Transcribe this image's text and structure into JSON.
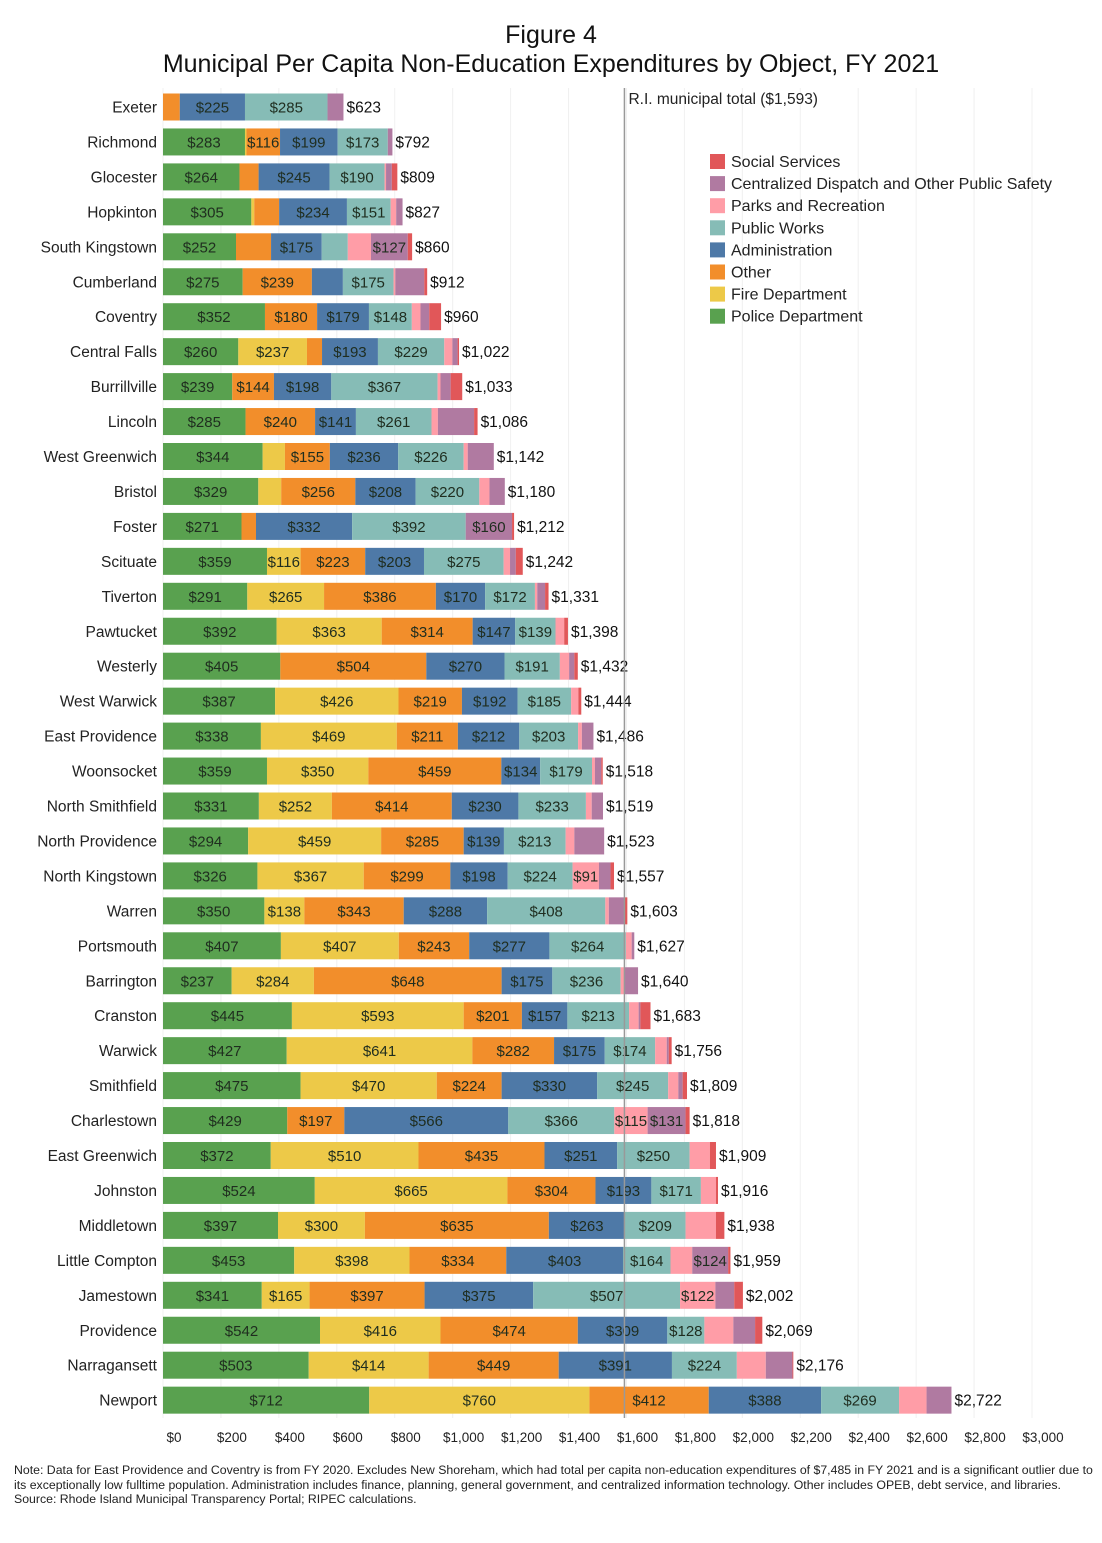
{
  "figure_label": "Figure 4",
  "footnote": {
    "note": "Note: Data for East Providence and Coventry is from FY 2020. Excludes New Shoreham, which had total per capita non-education expenditures of $7,485 in FY 2021 and is a significant outlier due to its exceptionally low fulltime population. Administration includes finance, planning, general government, and centralized information technology. Other includes OPEB, debt service, and libraries.",
    "source": "Source: Rhode Island Municipal Transparency Portal; RIPEC calculations."
  },
  "chart_data": {
    "type": "bar",
    "orientation": "horizontal",
    "stacked": true,
    "title": "Municipal Per Capita Non-Education Expenditures by Object, FY 2021",
    "xlabel": "",
    "ylabel": "",
    "xlim": [
      0,
      3000
    ],
    "x_ticks": [
      "$0",
      "$200",
      "$400",
      "$600",
      "$800",
      "$1,000",
      "$1,200",
      "$1,400",
      "$1,600",
      "$1,800",
      "$2,000",
      "$2,200",
      "$2,400",
      "$2,600",
      "$2,800",
      "$3,000"
    ],
    "x_tick_values": [
      0,
      200,
      400,
      600,
      800,
      1000,
      1200,
      1400,
      1600,
      1800,
      2000,
      2200,
      2400,
      2600,
      2800,
      3000
    ],
    "grid": "vertical",
    "legend_position": "top-right",
    "reference_line": {
      "value": 1593,
      "label": "R.I. municipal total ($1,593)",
      "color": "#999999"
    },
    "legend_order": [
      "Social Services",
      "Centralized Dispatch and Other Public Safety",
      "Parks and Recreation",
      "Public Works",
      "Administration",
      "Other",
      "Fire Department",
      "Police Department"
    ],
    "categories": [
      "Exeter",
      "Richmond",
      "Glocester",
      "Hopkinton",
      "South Kingstown",
      "Cumberland",
      "Coventry",
      "Central Falls",
      "Burrillville",
      "Lincoln",
      "West Greenwich",
      "Bristol",
      "Foster",
      "Scituate",
      "Tiverton",
      "Pawtucket",
      "Westerly",
      "West Warwick",
      "East Providence",
      "Woonsocket",
      "North Smithfield",
      "North Providence",
      "North Kingstown",
      "Warren",
      "Portsmouth",
      "Barrington",
      "Cranston",
      "Warwick",
      "Smithfield",
      "Charlestown",
      "East Greenwich",
      "Johnston",
      "Middletown",
      "Little Compton",
      "Jamestown",
      "Providence",
      "Narragansett",
      "Newport"
    ],
    "totals": [
      623,
      792,
      809,
      827,
      860,
      912,
      960,
      1022,
      1033,
      1086,
      1142,
      1180,
      1212,
      1242,
      1331,
      1398,
      1432,
      1444,
      1486,
      1518,
      1519,
      1523,
      1557,
      1603,
      1627,
      1640,
      1683,
      1756,
      1809,
      1818,
      1909,
      1916,
      1938,
      1959,
      2002,
      2069,
      2176,
      2722
    ],
    "total_labels": [
      "$623",
      "$792",
      "$809",
      "$827",
      "$860",
      "$912",
      "$960",
      "$1,022",
      "$1,033",
      "$1,086",
      "$1,142",
      "$1,180",
      "$1,212",
      "$1,242",
      "$1,331",
      "$1,398",
      "$1,432",
      "$1,444",
      "$1,486",
      "$1,518",
      "$1,519",
      "$1,523",
      "$1,557",
      "$1,603",
      "$1,627",
      "$1,640",
      "$1,683",
      "$1,756",
      "$1,809",
      "$1,818",
      "$1,909",
      "$1,916",
      "$1,938",
      "$1,959",
      "$2,002",
      "$2,069",
      "$2,176",
      "$2,722"
    ],
    "series": [
      {
        "name": "Police Department",
        "color": "#59a14f",
        "values": [
          0,
          283,
          264,
          305,
          252,
          275,
          352,
          260,
          239,
          285,
          344,
          329,
          271,
          359,
          291,
          392,
          405,
          387,
          338,
          359,
          331,
          294,
          326,
          350,
          407,
          237,
          445,
          427,
          475,
          429,
          372,
          524,
          397,
          453,
          341,
          542,
          503,
          712
        ],
        "labeled": [
          false,
          true,
          true,
          true,
          true,
          true,
          true,
          true,
          true,
          true,
          true,
          true,
          true,
          true,
          true,
          true,
          true,
          true,
          true,
          true,
          true,
          true,
          true,
          true,
          true,
          true,
          true,
          true,
          true,
          true,
          true,
          true,
          true,
          true,
          true,
          true,
          true,
          true
        ]
      },
      {
        "name": "Fire Department",
        "color": "#edc948",
        "values": [
          0,
          5,
          0,
          10,
          0,
          0,
          0,
          237,
          0,
          0,
          77,
          79,
          0,
          116,
          265,
          363,
          0,
          426,
          469,
          350,
          252,
          459,
          367,
          138,
          407,
          284,
          593,
          641,
          470,
          0,
          510,
          665,
          300,
          398,
          165,
          416,
          414,
          760
        ],
        "labeled": [
          false,
          false,
          false,
          false,
          false,
          false,
          false,
          true,
          false,
          false,
          false,
          false,
          false,
          true,
          true,
          true,
          false,
          true,
          true,
          true,
          true,
          true,
          true,
          true,
          true,
          true,
          true,
          true,
          true,
          false,
          true,
          true,
          true,
          true,
          true,
          true,
          true,
          true
        ]
      },
      {
        "name": "Other",
        "color": "#f28e2b",
        "values": [
          58,
          116,
          66,
          86,
          121,
          239,
          180,
          52,
          144,
          240,
          155,
          256,
          50,
          223,
          386,
          314,
          504,
          219,
          211,
          459,
          414,
          285,
          299,
          343,
          243,
          648,
          201,
          282,
          224,
          197,
          435,
          304,
          635,
          334,
          397,
          474,
          449,
          412
        ],
        "labeled": [
          false,
          true,
          false,
          false,
          false,
          true,
          true,
          false,
          true,
          true,
          true,
          true,
          false,
          true,
          true,
          true,
          true,
          true,
          true,
          true,
          true,
          true,
          true,
          true,
          true,
          true,
          true,
          true,
          true,
          true,
          true,
          true,
          true,
          true,
          true,
          true,
          true,
          true
        ]
      },
      {
        "name": "Administration",
        "color": "#4e79a7",
        "values": [
          225,
          199,
          245,
          234,
          175,
          107,
          179,
          193,
          198,
          141,
          236,
          208,
          332,
          203,
          170,
          147,
          270,
          192,
          212,
          134,
          230,
          139,
          198,
          288,
          277,
          175,
          157,
          175,
          330,
          566,
          251,
          193,
          263,
          403,
          375,
          309,
          391,
          388
        ],
        "labeled": [
          true,
          true,
          true,
          true,
          true,
          false,
          true,
          true,
          true,
          true,
          true,
          true,
          true,
          true,
          true,
          true,
          true,
          true,
          true,
          true,
          true,
          true,
          true,
          true,
          true,
          true,
          true,
          true,
          true,
          true,
          true,
          true,
          true,
          true,
          true,
          true,
          true,
          true
        ]
      },
      {
        "name": "Public Works",
        "color": "#86bcb6",
        "values": [
          285,
          173,
          190,
          151,
          90,
          175,
          148,
          229,
          367,
          261,
          226,
          220,
          392,
          275,
          172,
          139,
          191,
          185,
          203,
          179,
          233,
          213,
          224,
          408,
          264,
          236,
          213,
          174,
          245,
          366,
          250,
          171,
          209,
          164,
          507,
          128,
          224,
          269
        ],
        "labeled": [
          true,
          true,
          true,
          true,
          false,
          true,
          true,
          true,
          true,
          true,
          true,
          true,
          true,
          true,
          true,
          true,
          true,
          true,
          true,
          true,
          true,
          true,
          true,
          true,
          true,
          true,
          true,
          true,
          true,
          true,
          true,
          true,
          true,
          true,
          true,
          true,
          true,
          true
        ]
      },
      {
        "name": "Parks and Recreation",
        "color": "#ff9da7",
        "values": [
          0,
          0,
          5,
          19,
          80,
          6,
          30,
          28,
          10,
          22,
          14,
          35,
          0,
          22,
          8,
          30,
          32,
          25,
          13,
          10,
          20,
          30,
          91,
          12,
          20,
          15,
          33,
          40,
          35,
          115,
          70,
          52,
          105,
          75,
          122,
          100,
          100,
          95
        ],
        "labeled": [
          false,
          false,
          false,
          false,
          false,
          false,
          false,
          false,
          false,
          false,
          false,
          false,
          false,
          false,
          false,
          false,
          false,
          false,
          false,
          false,
          false,
          false,
          true,
          false,
          false,
          false,
          false,
          false,
          false,
          true,
          false,
          false,
          false,
          false,
          true,
          false,
          false,
          false
        ]
      },
      {
        "name": "Centralized Dispatch and Other Public Safety",
        "color": "#b07aa1",
        "values": [
          55,
          16,
          20,
          22,
          127,
          100,
          30,
          18,
          35,
          125,
          90,
          53,
          160,
          20,
          27,
          0,
          18,
          0,
          40,
          22,
          39,
          103,
          40,
          55,
          9,
          45,
          6,
          7,
          15,
          131,
          0,
          0,
          0,
          124,
          65,
          75,
          92,
          86
        ],
        "labeled": [
          false,
          false,
          false,
          false,
          true,
          false,
          false,
          false,
          false,
          false,
          false,
          false,
          true,
          false,
          false,
          false,
          false,
          false,
          false,
          false,
          false,
          false,
          false,
          false,
          false,
          false,
          false,
          false,
          false,
          true,
          false,
          false,
          false,
          true,
          false,
          false,
          false,
          false
        ]
      },
      {
        "name": "Social Services",
        "color": "#e15759",
        "values": [
          0,
          0,
          19,
          0,
          15,
          10,
          41,
          5,
          40,
          12,
          0,
          0,
          7,
          24,
          12,
          13,
          12,
          10,
          0,
          5,
          0,
          0,
          12,
          9,
          0,
          0,
          35,
          10,
          15,
          14,
          21,
          7,
          29,
          8,
          30,
          25,
          3,
          0
        ],
        "labeled": [
          false,
          false,
          false,
          false,
          false,
          false,
          false,
          false,
          false,
          false,
          false,
          false,
          false,
          false,
          false,
          false,
          false,
          false,
          false,
          false,
          false,
          false,
          false,
          false,
          false,
          false,
          false,
          false,
          false,
          false,
          false,
          false,
          false,
          false,
          false,
          false,
          false,
          false
        ]
      }
    ]
  }
}
